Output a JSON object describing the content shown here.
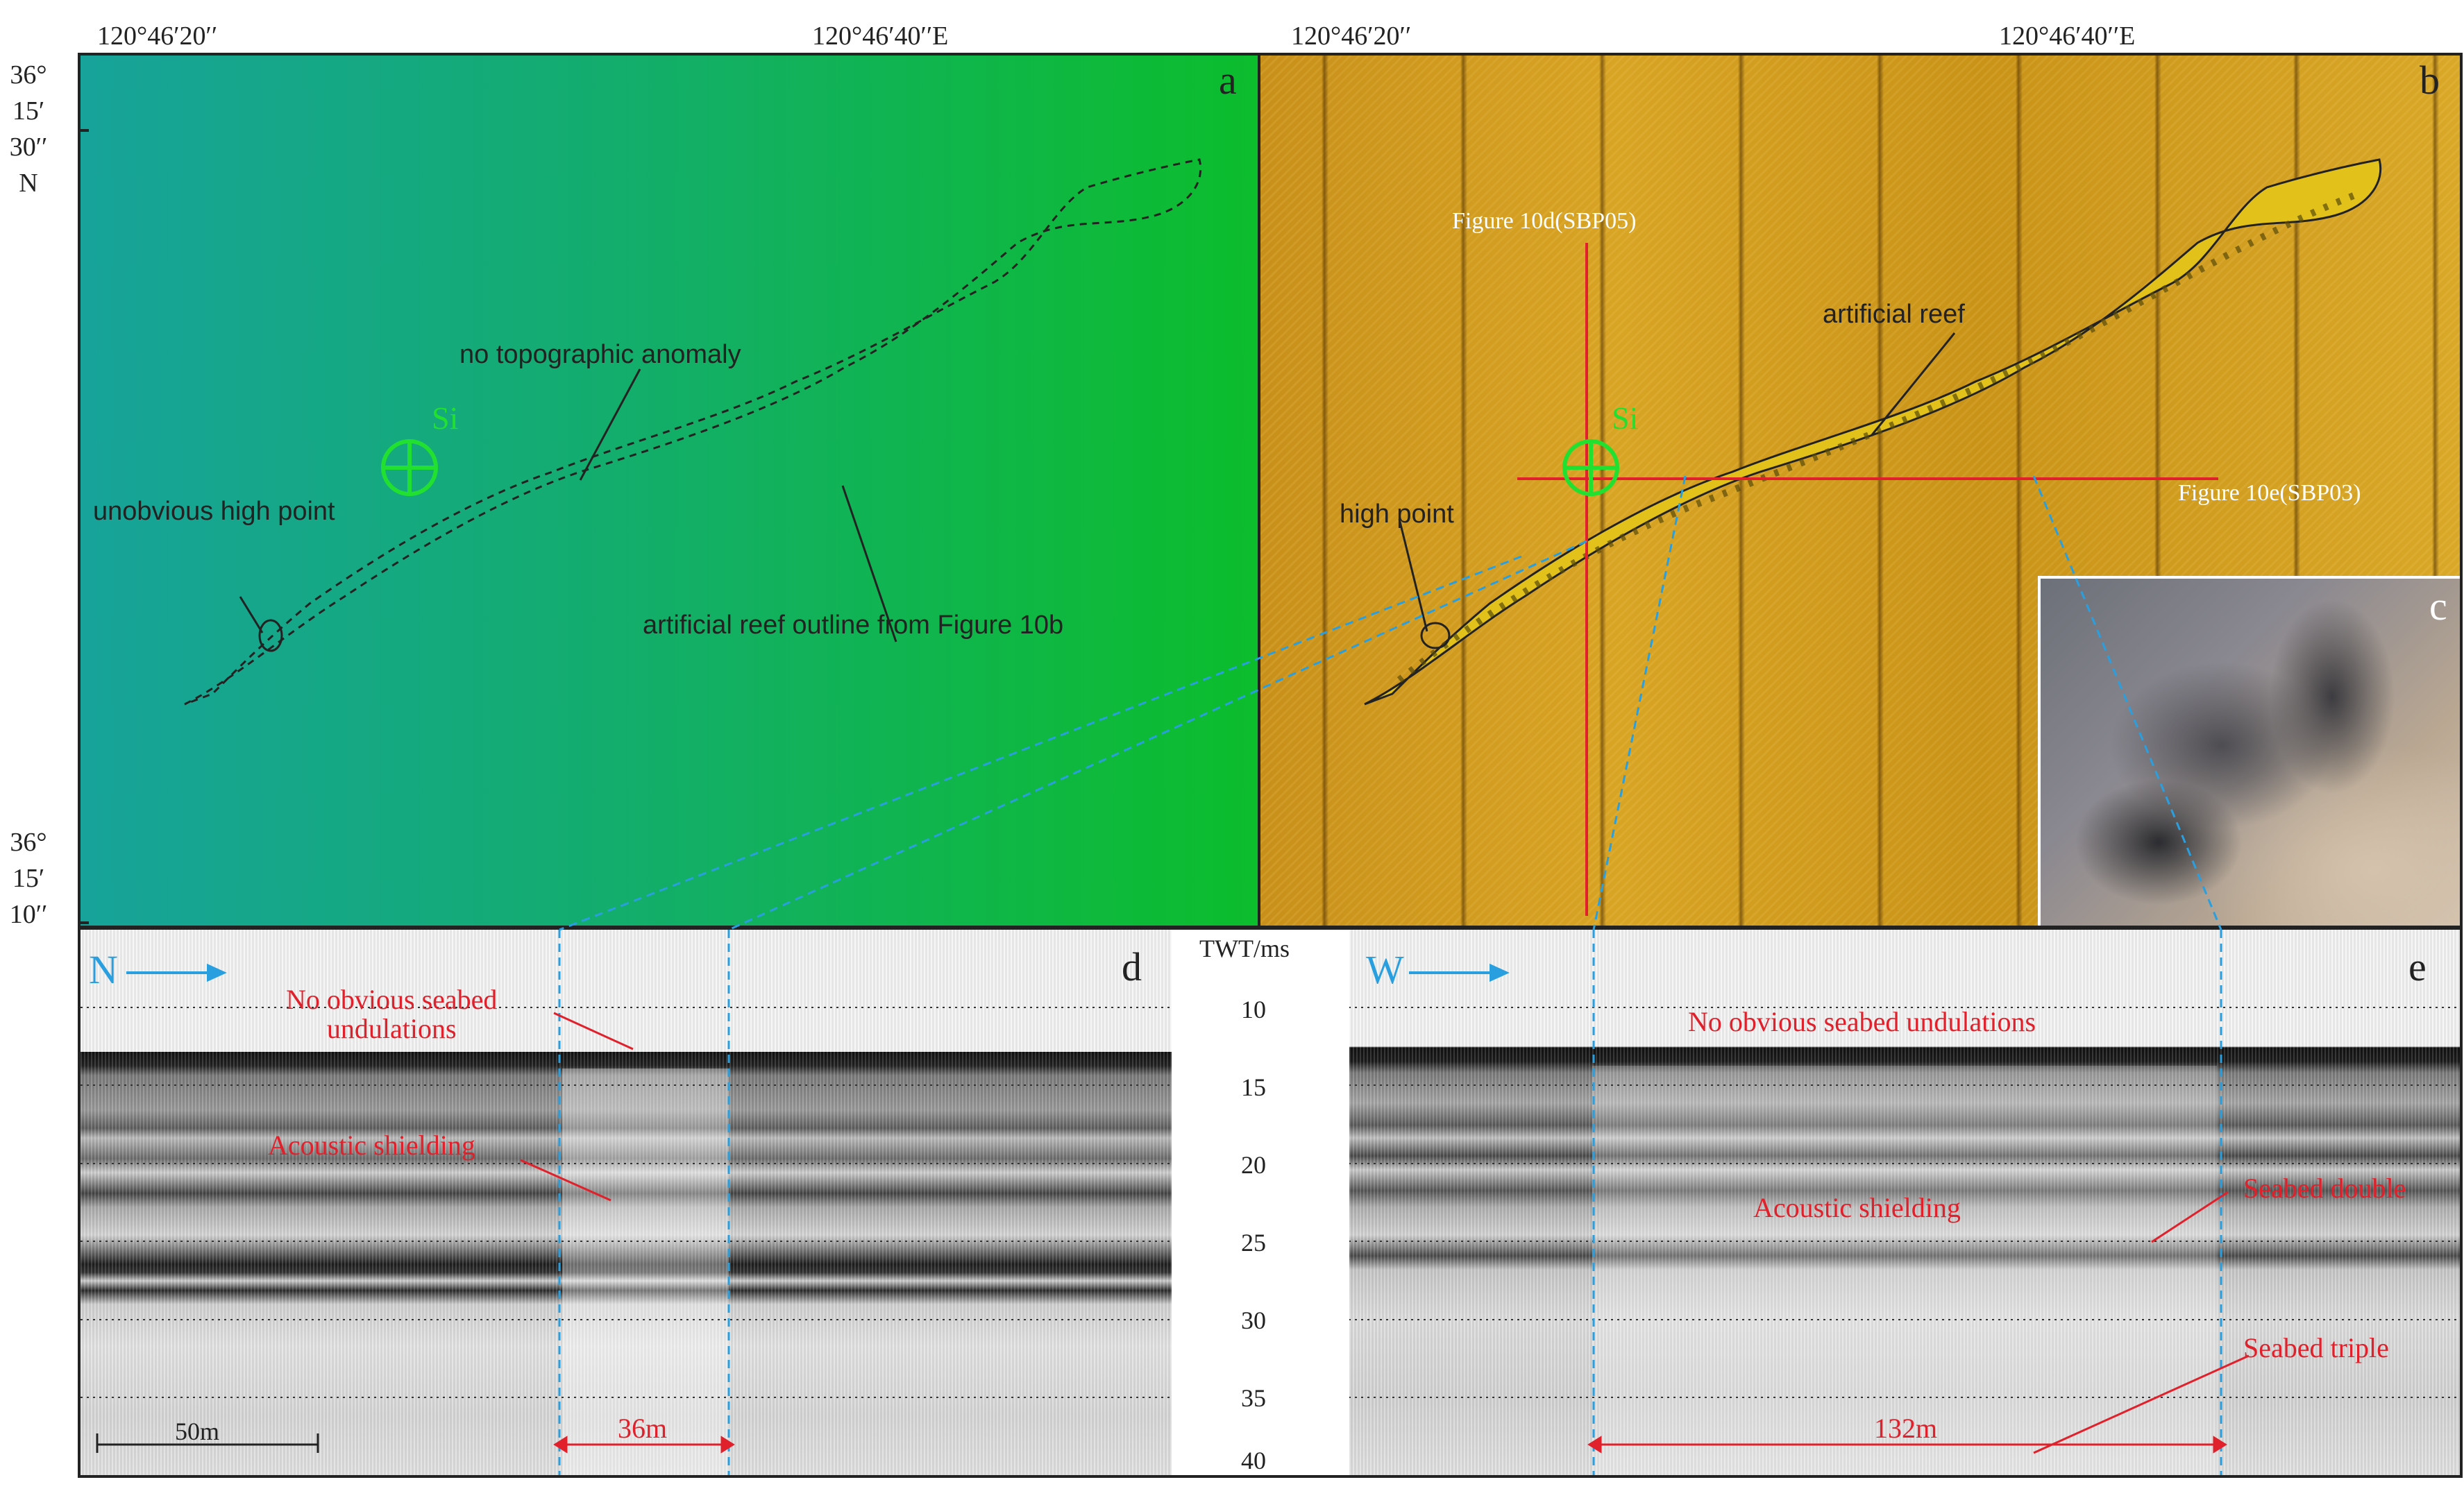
{
  "top_axis": {
    "left_ticks": [
      "120°46′20′′",
      "120°46′40′′E"
    ],
    "right_ticks": [
      "120°46′20′′",
      "120°46′40′′E"
    ]
  },
  "left_axis": {
    "upper": "36°\n15′\n30′′\nN",
    "lower": "36°\n15′\n10′′"
  },
  "panel_a": {
    "label": "a",
    "site_label": "Si",
    "annotations": {
      "no_anomaly": "no topographic anomaly",
      "unobvious": "unobvious high point",
      "outline": "artificial reef outline from Figure 10b"
    }
  },
  "panel_b": {
    "label": "b",
    "site_label": "Si",
    "profile_d": "Figure 10d(SBP05)",
    "profile_e": "Figure 10e(SBP03)",
    "reef": "artificial reef",
    "high_point": "high point"
  },
  "panel_c": {
    "label": "c"
  },
  "panel_d": {
    "label": "d",
    "direction": "N",
    "seabed_note": "No obvious seabed\nundulations",
    "shielding": "Acoustic shielding",
    "scale_bar": "50m",
    "width": "36m"
  },
  "panel_e": {
    "label": "e",
    "direction": "W",
    "seabed_note": "No obvious seabed undulations",
    "shielding": "Acoustic shielding",
    "double": "Seabed double",
    "triple": "Seabed triple",
    "width": "132m"
  },
  "twt_axis": {
    "title": "TWT/ms",
    "ticks": [
      "10",
      "15",
      "20",
      "25",
      "30",
      "35",
      "40"
    ]
  },
  "colors": {
    "bathy_left": "#17a39a",
    "bathy_right": "#0cbd2c",
    "sonar": "#cf9a18",
    "red": "#e0202a",
    "blue": "#2a9fe0",
    "green_marker": "#22e030"
  }
}
